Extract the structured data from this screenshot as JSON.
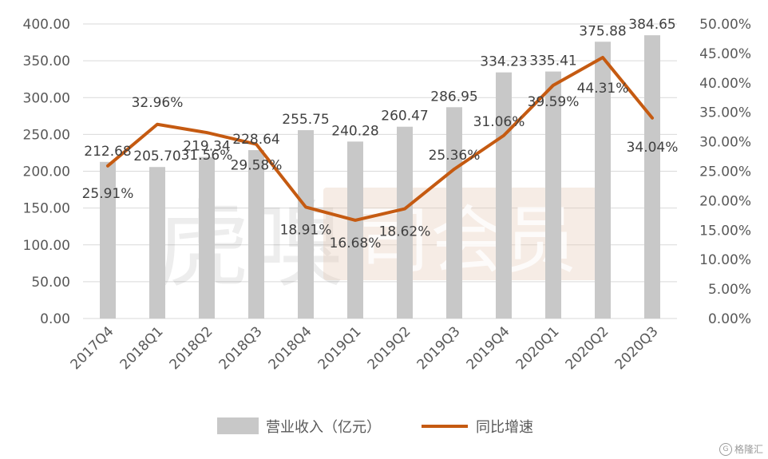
{
  "chart_data": {
    "type": "bar+line",
    "categories": [
      "2017Q4",
      "2018Q1",
      "2018Q2",
      "2018Q3",
      "2018Q4",
      "2019Q1",
      "2019Q2",
      "2019Q3",
      "2019Q4",
      "2020Q1",
      "2020Q2",
      "2020Q3"
    ],
    "series": [
      {
        "name": "营业收入（亿元）",
        "type": "bar",
        "axis": "left",
        "color": "#c8c8c8",
        "values": [
          212.68,
          205.7,
          219.34,
          228.64,
          255.75,
          240.28,
          260.47,
          286.95,
          334.23,
          335.41,
          375.88,
          384.65
        ],
        "labels": [
          "212.68",
          "205.70",
          "219.34",
          "228.64",
          "255.75",
          "240.28",
          "260.47",
          "286.95",
          "334.23",
          "335.41",
          "375.88",
          "384.65"
        ]
      },
      {
        "name": "同比增速",
        "type": "line",
        "axis": "right",
        "color": "#c55a11",
        "values": [
          25.91,
          32.96,
          31.56,
          29.58,
          18.91,
          16.68,
          18.62,
          25.36,
          31.06,
          39.59,
          44.31,
          34.04
        ],
        "labels": [
          "25.91%",
          "32.96%",
          "31.56%",
          "29.58%",
          "18.91%",
          "16.68%",
          "18.62%",
          "25.36%",
          "31.06%",
          "39.59%",
          "44.31%",
          "34.04%"
        ]
      }
    ],
    "y_left": {
      "ylim": [
        0,
        400
      ],
      "ticks": [
        "0.00",
        "50.00",
        "100.00",
        "150.00",
        "200.00",
        "250.00",
        "300.00",
        "350.00",
        "400.00"
      ]
    },
    "y_right": {
      "ylim": [
        0,
        50
      ],
      "ticks": [
        "0.00%",
        "5.00%",
        "10.00%",
        "15.00%",
        "20.00%",
        "25.00%",
        "30.00%",
        "35.00%",
        "40.00%",
        "45.00%",
        "50.00%"
      ]
    },
    "grid": true,
    "legend_position": "bottom"
  },
  "legend": {
    "bar_label": "营业收入（亿元）",
    "line_label": "同比增速"
  },
  "watermark": {
    "big_text": "虎嗅",
    "box_text": "司会员"
  },
  "corner": {
    "badge": "G",
    "text": "格隆汇"
  }
}
